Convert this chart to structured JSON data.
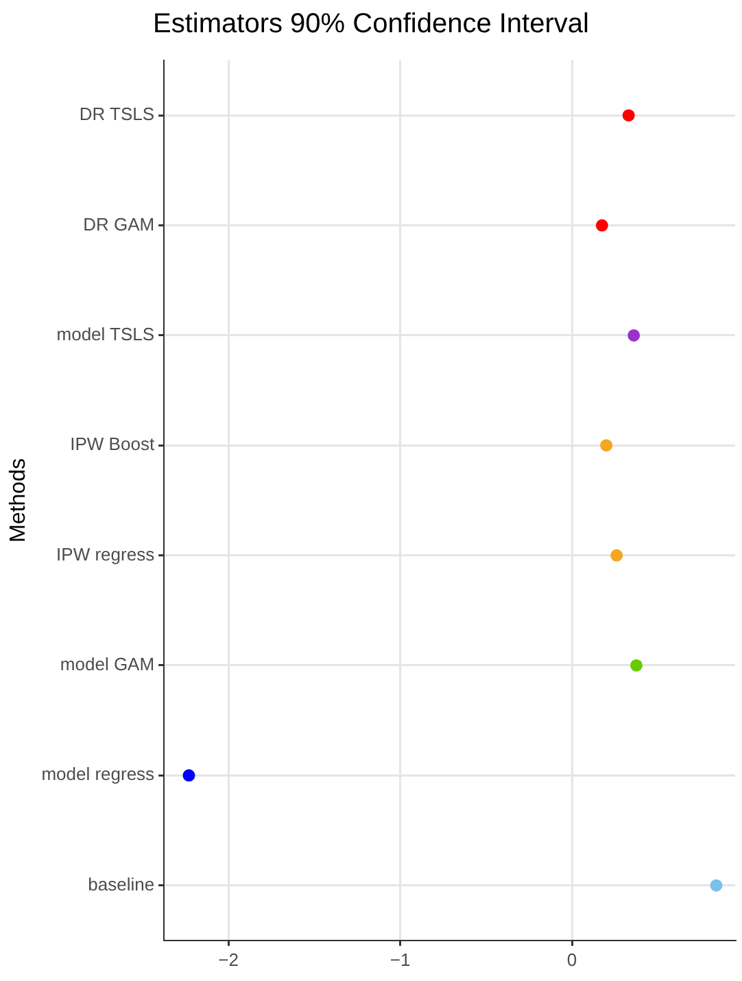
{
  "chart_data": {
    "type": "scatter",
    "title": "Estimators 90% Confidence Interval",
    "ylabel": "Methods",
    "orientation": "horizontal",
    "categories": [
      "DR TSLS",
      "DR GAM",
      "model TSLS",
      "IPW Boost",
      "IPW regress",
      "model GAM",
      "model regress",
      "baseline"
    ],
    "values": [
      0.33,
      0.175,
      0.36,
      0.2,
      0.26,
      0.375,
      -2.23,
      0.84
    ],
    "colors": [
      "#ff0000",
      "#ff0000",
      "#9932cc",
      "#f5a623",
      "#f5a623",
      "#66cc00",
      "#0000ff",
      "#79c0ea"
    ],
    "xlim": [
      -2.375,
      0.95
    ],
    "xticks": [
      -2,
      -1,
      0
    ],
    "grid": true,
    "marker": "circle"
  }
}
